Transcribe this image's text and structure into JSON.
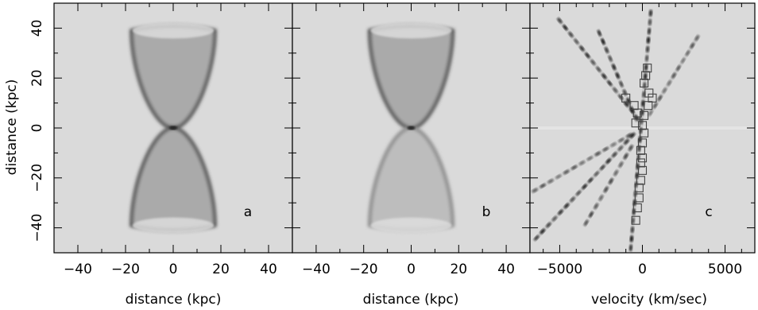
{
  "figure": {
    "ylabel": "distance (kpc)",
    "panels": [
      {
        "letter": "a",
        "xlabel": "distance (kpc)"
      },
      {
        "letter": "b",
        "xlabel": "distance (kpc)"
      },
      {
        "letter": "c",
        "xlabel": "velocity (km/sec)"
      }
    ]
  },
  "chart_data": [
    {
      "type": "heatmap",
      "panel": "a",
      "xlabel": "distance (kpc)",
      "ylabel": "distance (kpc)",
      "xlim": [
        -50,
        50
      ],
      "ylim": [
        -50,
        50
      ],
      "xticks": [
        -40,
        -20,
        0,
        20,
        40
      ],
      "yticks": [
        -40,
        -20,
        0,
        20,
        40
      ],
      "shape": "bi-cone, both lobes equally dark",
      "lobe_half_width_kpc": 17.5,
      "lobe_extent_kpc": [
        -42,
        42
      ],
      "upper_lobe_intensity": 1.0,
      "lower_lobe_intensity": 1.0
    },
    {
      "type": "heatmap",
      "panel": "b",
      "xlabel": "distance (kpc)",
      "xlim": [
        -50,
        50
      ],
      "ylim": [
        -50,
        50
      ],
      "xticks": [
        -40,
        -20,
        0,
        20,
        40
      ],
      "shape": "bi-cone, lower lobe fainter",
      "lobe_half_width_kpc": 17.5,
      "lobe_extent_kpc": [
        -42,
        42
      ],
      "upper_lobe_intensity": 1.0,
      "lower_lobe_intensity": 0.45
    },
    {
      "type": "scatter",
      "panel": "c",
      "xlabel": "velocity (km/sec)",
      "xlim": [
        -6800,
        6800
      ],
      "ylim": [
        -50,
        50
      ],
      "xticks": [
        -5000,
        0,
        5000
      ],
      "streaks": [
        {
          "from": [
            -5000,
            43
          ],
          "to": [
            -300,
            4
          ],
          "dark": 0.9
        },
        {
          "from": [
            -2600,
            38
          ],
          "to": [
            -400,
            4
          ],
          "dark": 1.0
        },
        {
          "from": [
            -700,
            -48
          ],
          "to": [
            500,
            46
          ],
          "dark": 1.0
        },
        {
          "from": [
            3300,
            36
          ],
          "to": [
            500,
            6
          ],
          "dark": 0.55
        },
        {
          "from": [
            -6400,
            -44
          ],
          "to": [
            -600,
            -3
          ],
          "dark": 0.9
        },
        {
          "from": [
            -6500,
            -25
          ],
          "to": [
            -800,
            -3
          ],
          "dark": 0.55
        },
        {
          "from": [
            -3400,
            -38
          ],
          "to": [
            -700,
            -8
          ],
          "dark": 0.7
        }
      ],
      "squares": [
        {
          "x": 300,
          "y": 24
        },
        {
          "x": 200,
          "y": 21
        },
        {
          "x": 100,
          "y": 18
        },
        {
          "x": 400,
          "y": 14
        },
        {
          "x": 600,
          "y": 12
        },
        {
          "x": -1000,
          "y": 12
        },
        {
          "x": -500,
          "y": 9
        },
        {
          "x": 350,
          "y": 9
        },
        {
          "x": -300,
          "y": 6
        },
        {
          "x": 100,
          "y": 5
        },
        {
          "x": -400,
          "y": 2
        },
        {
          "x": 0,
          "y": 1
        },
        {
          "x": 100,
          "y": -2
        },
        {
          "x": 0,
          "y": -6
        },
        {
          "x": -100,
          "y": -9
        },
        {
          "x": 0,
          "y": -12
        },
        {
          "x": -100,
          "y": -14
        },
        {
          "x": 0,
          "y": -17
        },
        {
          "x": -100,
          "y": -21
        },
        {
          "x": -200,
          "y": -24
        },
        {
          "x": -200,
          "y": -28
        },
        {
          "x": -300,
          "y": -32
        },
        {
          "x": -400,
          "y": -37
        }
      ]
    }
  ]
}
